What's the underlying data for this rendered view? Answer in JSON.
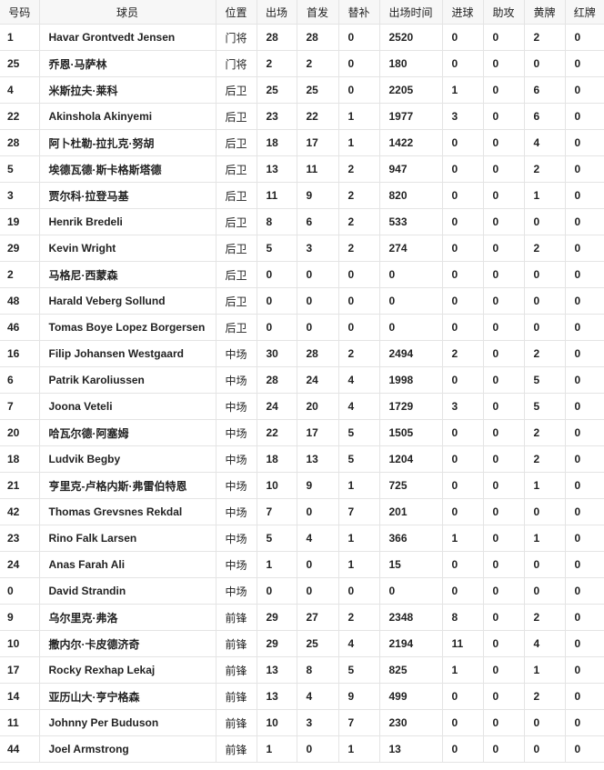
{
  "headers": [
    "号码",
    "球员",
    "位置",
    "出场",
    "首发",
    "替补",
    "出场时间",
    "进球",
    "助攻",
    "黄牌",
    "红牌"
  ],
  "rows": [
    [
      "1",
      "Havar Grontvedt Jensen",
      "门将",
      "28",
      "28",
      "0",
      "2520",
      "0",
      "0",
      "2",
      "0"
    ],
    [
      "25",
      "乔恩·马萨林",
      "门将",
      "2",
      "2",
      "0",
      "180",
      "0",
      "0",
      "0",
      "0"
    ],
    [
      "4",
      "米斯拉夫·莱科",
      "后卫",
      "25",
      "25",
      "0",
      "2205",
      "1",
      "0",
      "6",
      "0"
    ],
    [
      "22",
      "Akinshola Akinyemi",
      "后卫",
      "23",
      "22",
      "1",
      "1977",
      "3",
      "0",
      "6",
      "0"
    ],
    [
      "28",
      "阿卜杜勒-拉扎克·努胡",
      "后卫",
      "18",
      "17",
      "1",
      "1422",
      "0",
      "0",
      "4",
      "0"
    ],
    [
      "5",
      "埃德瓦德·斯卡格斯塔德",
      "后卫",
      "13",
      "11",
      "2",
      "947",
      "0",
      "0",
      "2",
      "0"
    ],
    [
      "3",
      "贾尔科·拉登马基",
      "后卫",
      "11",
      "9",
      "2",
      "820",
      "0",
      "0",
      "1",
      "0"
    ],
    [
      "19",
      "Henrik Bredeli",
      "后卫",
      "8",
      "6",
      "2",
      "533",
      "0",
      "0",
      "0",
      "0"
    ],
    [
      "29",
      "Kevin Wright",
      "后卫",
      "5",
      "3",
      "2",
      "274",
      "0",
      "0",
      "2",
      "0"
    ],
    [
      "2",
      "马格尼·西蒙森",
      "后卫",
      "0",
      "0",
      "0",
      "0",
      "0",
      "0",
      "0",
      "0"
    ],
    [
      "48",
      "Harald Veberg Sollund",
      "后卫",
      "0",
      "0",
      "0",
      "0",
      "0",
      "0",
      "0",
      "0"
    ],
    [
      "46",
      "Tomas Boye Lopez Borgersen",
      "后卫",
      "0",
      "0",
      "0",
      "0",
      "0",
      "0",
      "0",
      "0"
    ],
    [
      "16",
      "Filip Johansen Westgaard",
      "中场",
      "30",
      "28",
      "2",
      "2494",
      "2",
      "0",
      "2",
      "0"
    ],
    [
      "6",
      "Patrik Karoliussen",
      "中场",
      "28",
      "24",
      "4",
      "1998",
      "0",
      "0",
      "5",
      "0"
    ],
    [
      "7",
      "Joona Veteli",
      "中场",
      "24",
      "20",
      "4",
      "1729",
      "3",
      "0",
      "5",
      "0"
    ],
    [
      "20",
      "哈瓦尔德·阿塞姆",
      "中场",
      "22",
      "17",
      "5",
      "1505",
      "0",
      "0",
      "2",
      "0"
    ],
    [
      "18",
      "Ludvik Begby",
      "中场",
      "18",
      "13",
      "5",
      "1204",
      "0",
      "0",
      "2",
      "0"
    ],
    [
      "21",
      "亨里克-卢格内斯·弗雷伯特恩",
      "中场",
      "10",
      "9",
      "1",
      "725",
      "0",
      "0",
      "1",
      "0"
    ],
    [
      "42",
      "Thomas Grevsnes Rekdal",
      "中场",
      "7",
      "0",
      "7",
      "201",
      "0",
      "0",
      "0",
      "0"
    ],
    [
      "23",
      "Rino Falk Larsen",
      "中场",
      "5",
      "4",
      "1",
      "366",
      "1",
      "0",
      "1",
      "0"
    ],
    [
      "24",
      "Anas Farah Ali",
      "中场",
      "1",
      "0",
      "1",
      "15",
      "0",
      "0",
      "0",
      "0"
    ],
    [
      "0",
      "David Strandin",
      "中场",
      "0",
      "0",
      "0",
      "0",
      "0",
      "0",
      "0",
      "0"
    ],
    [
      "9",
      "乌尔里克·弗洛",
      "前锋",
      "29",
      "27",
      "2",
      "2348",
      "8",
      "0",
      "2",
      "0"
    ],
    [
      "10",
      "撒内尔·卡皮德济奇",
      "前锋",
      "29",
      "25",
      "4",
      "2194",
      "11",
      "0",
      "4",
      "0"
    ],
    [
      "17",
      "Rocky Rexhap Lekaj",
      "前锋",
      "13",
      "8",
      "5",
      "825",
      "1",
      "0",
      "1",
      "0"
    ],
    [
      "14",
      "亚历山大·亨宁格森",
      "前锋",
      "13",
      "4",
      "9",
      "499",
      "0",
      "0",
      "2",
      "0"
    ],
    [
      "11",
      "Johnny Per Buduson",
      "前锋",
      "10",
      "3",
      "7",
      "230",
      "0",
      "0",
      "0",
      "0"
    ],
    [
      "44",
      "Joel Armstrong",
      "前锋",
      "1",
      "0",
      "1",
      "13",
      "0",
      "0",
      "0",
      "0"
    ]
  ]
}
